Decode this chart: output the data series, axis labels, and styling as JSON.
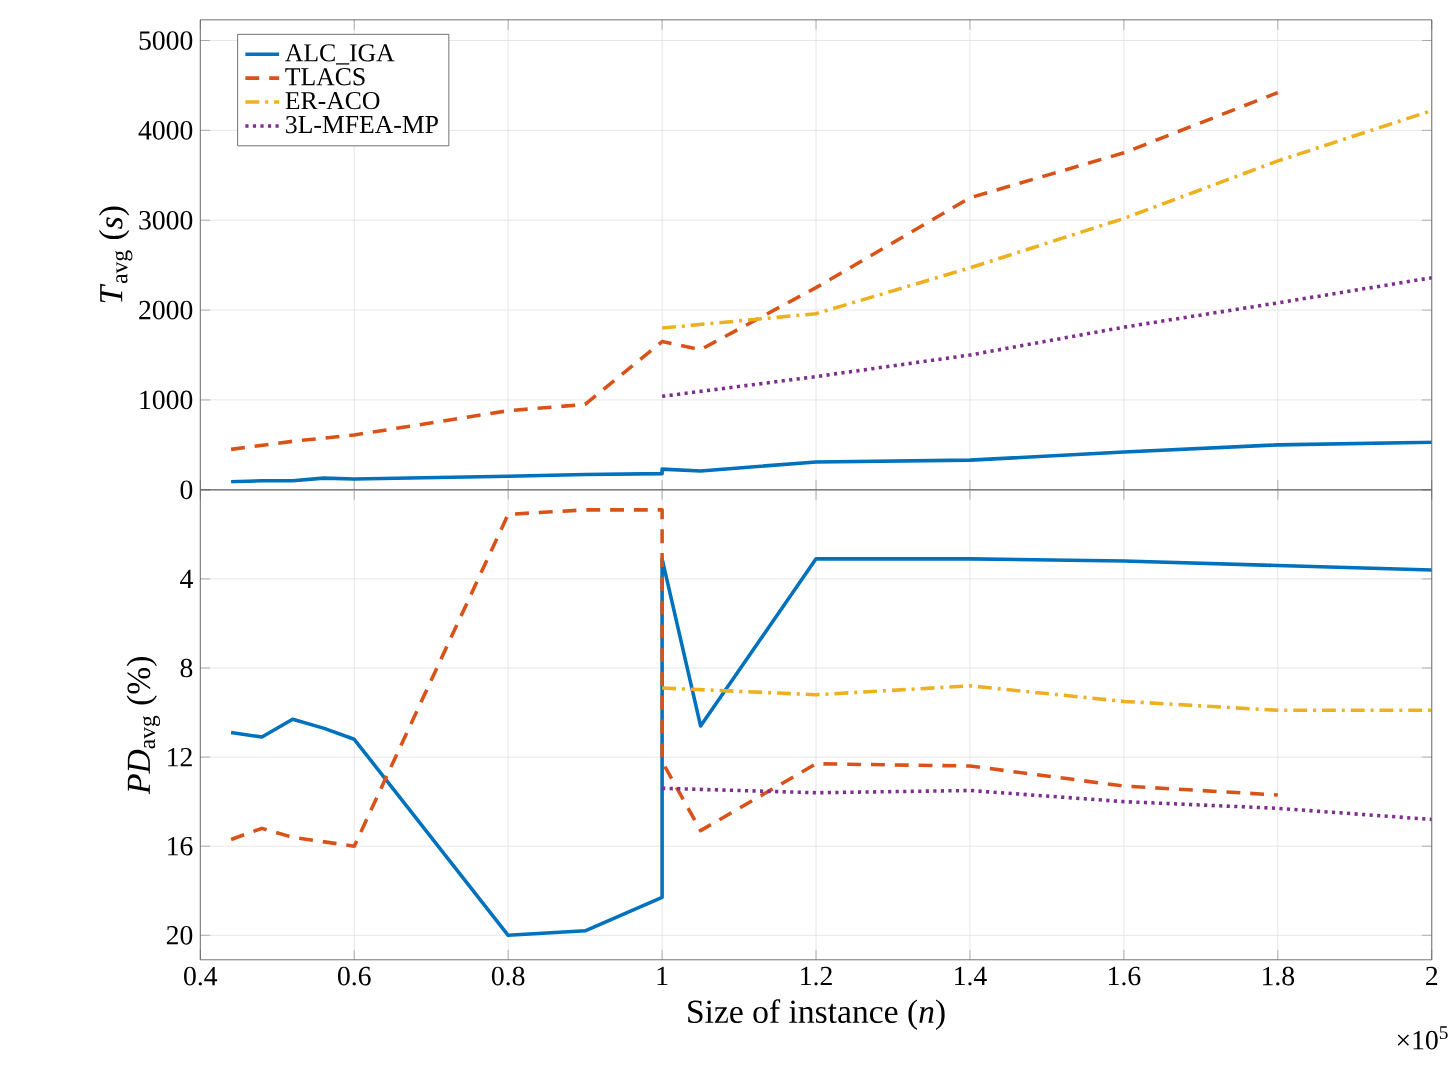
{
  "chart_data": [
    {
      "type": "line",
      "ylabel": "*T*$_{avg}$ (*s*)",
      "xlim": [
        0.4,
        2
      ],
      "ylim": [
        0,
        5230
      ],
      "xticks": [
        0.4,
        0.6,
        0.8,
        1,
        1.2,
        1.4,
        1.6,
        1.8,
        2
      ],
      "yticks": [
        0,
        1000,
        2000,
        3000,
        4000,
        5000
      ],
      "tick_labels": "y",
      "grid": true,
      "legend": "top left",
      "series": [
        {
          "name": "ALC_IGA",
          "color": "#0072bd",
          "line_style": "solid",
          "x": [
            0.44,
            0.48,
            0.52,
            0.56,
            0.6,
            0.8,
            0.9,
            1,
            1,
            1.05,
            1.2,
            1.4,
            1.6,
            1.8,
            2
          ],
          "values": [
            90,
            100,
            100,
            130,
            120,
            150,
            170,
            180,
            230,
            210,
            310,
            330,
            420,
            500,
            530
          ]
        },
        {
          "name": "TLACS",
          "color": "#d95319",
          "line_style": "dashed",
          "x": [
            0.44,
            0.52,
            0.6,
            0.8,
            0.9,
            1,
            1.05,
            1.2,
            1.4,
            1.6,
            1.8
          ],
          "values": [
            450,
            540,
            610,
            880,
            950,
            1650,
            1560,
            2250,
            3250,
            3750,
            4420
          ]
        },
        {
          "name": "ER-ACO",
          "color": "#edb120",
          "line_style": "dashdot",
          "x": [
            1,
            1.2,
            1.4,
            1.6,
            1.8,
            2
          ],
          "values": [
            1800,
            1960,
            2470,
            3020,
            3660,
            4220
          ]
        },
        {
          "name": "3L-MFEA-MP",
          "color": "#7e2f8e",
          "line_style": "dotted",
          "x": [
            1,
            1.2,
            1.4,
            1.6,
            1.8,
            2
          ],
          "values": [
            1040,
            1260,
            1500,
            1810,
            2080,
            2360
          ]
        }
      ]
    },
    {
      "type": "line",
      "xlabel": "Size of instance (*n*)",
      "ylabel": "*PD*$_{avg}$ (%)",
      "annotations": [
        "×10$^{5}$"
      ],
      "xlim": [
        0.4,
        2
      ],
      "ylim": [
        21.1,
        0
      ],
      "xticks": [
        0.4,
        0.6,
        0.8,
        1,
        1.2,
        1.4,
        1.6,
        1.8,
        2
      ],
      "yticks": [
        {
          "value": 0,
          "label": null
        },
        4,
        8,
        12,
        16,
        20
      ],
      "grid": true,
      "series": [
        {
          "color": "#0072bd",
          "line_style": "solid",
          "x": [
            0.44,
            0.48,
            0.52,
            0.56,
            0.6,
            0.8,
            0.9,
            1,
            1,
            1.05,
            1.2,
            1.4,
            1.6,
            1.8,
            2
          ],
          "values": [
            10.9,
            11.1,
            10.3,
            10.7,
            11.2,
            20.0,
            19.8,
            18.3,
            3.1,
            10.6,
            3.1,
            3.1,
            3.2,
            3.4,
            3.6
          ]
        },
        {
          "color": "#d95319",
          "line_style": "dashed",
          "x": [
            0.44,
            0.48,
            0.52,
            0.6,
            0.8,
            0.9,
            1,
            1,
            1.05,
            1.2,
            1.4,
            1.6,
            1.8
          ],
          "values": [
            15.7,
            15.2,
            15.6,
            16.0,
            1.1,
            0.9,
            0.9,
            12.2,
            15.3,
            12.3,
            12.4,
            13.3,
            13.7
          ]
        },
        {
          "color": "#edb120",
          "line_style": "dashdot",
          "x": [
            1,
            1.2,
            1.4,
            1.6,
            1.8,
            2
          ],
          "values": [
            8.9,
            9.2,
            8.8,
            9.5,
            9.9,
            9.9
          ]
        },
        {
          "color": "#7e2f8e",
          "line_style": "dotted",
          "x": [
            1,
            1.2,
            1.4,
            1.6,
            1.8,
            2
          ],
          "values": [
            13.4,
            13.6,
            13.5,
            14.0,
            14.3,
            14.8
          ]
        }
      ]
    }
  ]
}
